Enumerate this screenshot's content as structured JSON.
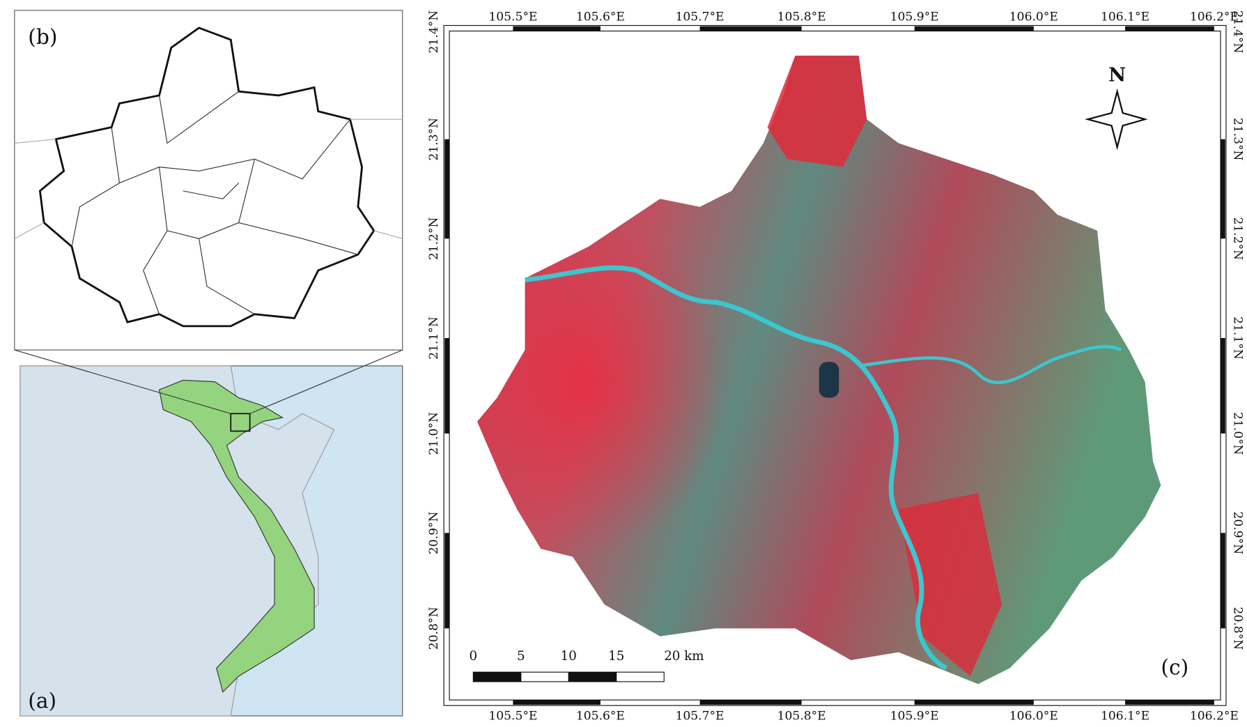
{
  "panels": {
    "a": {
      "label": "(a)"
    },
    "b": {
      "label": "(b)"
    },
    "c": {
      "label": "(c)"
    }
  },
  "map_c": {
    "lon_labels": [
      "105.5°E",
      "105.6°E",
      "105.7°E",
      "105.8°E",
      "105.9°E",
      "106.0°E",
      "106.1°E",
      "106.2°E"
    ],
    "lat_labels": [
      "21.4°N",
      "21.3°N",
      "21.2°N",
      "21.1°N",
      "21.0°N",
      "20.9°N",
      "20.8°N"
    ],
    "north": "N",
    "scale_labels": [
      "0",
      "5",
      "10",
      "15",
      "20 km"
    ]
  }
}
